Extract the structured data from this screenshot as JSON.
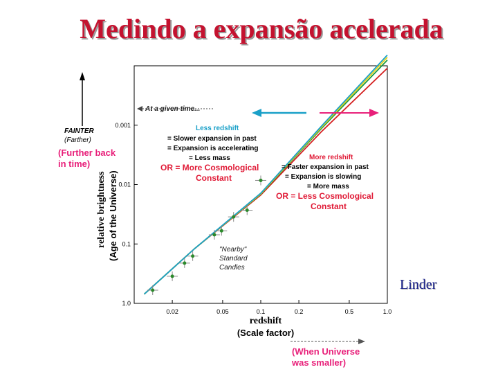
{
  "slide": {
    "title": "Medindo a expansão acelerada",
    "credit": "Linder"
  },
  "colors": {
    "title": "#c4122f",
    "credit": "#18208a",
    "cyan": "#1aa0c8",
    "pink": "#e8207a",
    "red": "#d41f1f",
    "green": "#1f9a3e",
    "yellow": "#e8d21a",
    "annotation_cyan": "#1aa0c8",
    "annotation_red": "#e01a36",
    "annotation_pink": "#e8207a",
    "data_green": "#2b8a2b"
  },
  "icons": {
    "arrow_up": "arrow-up-icon",
    "arrow_left": "arrow-left-icon",
    "arrow_right": "arrow-right-icon"
  },
  "chart_data": {
    "type": "line",
    "x_scale": "log",
    "y_scale": "log",
    "x_tick_labels": [
      "0.02",
      "0.05",
      "0.1",
      "0.2",
      "0.5",
      "1.0"
    ],
    "x_ticks": [
      0.02,
      0.05,
      0.1,
      0.2,
      0.5,
      1.0
    ],
    "y_tick_labels": [
      "0.001",
      "0.01",
      "0.1",
      "1.0"
    ],
    "y_ticks": [
      0.001,
      0.01,
      0.1,
      1.0
    ],
    "xlim": [
      0.01,
      1.0
    ],
    "ylim": [
      0.0001,
      1.0
    ],
    "xlabel_main": "redshift",
    "xlabel_sub": "(Scale factor)",
    "xlabel_note": "(When Universe was smaller)",
    "ylabel_main": "relative brightness",
    "ylabel_sub": "(Age of the Universe)",
    "left_annotation": {
      "faint_label": "FAINTER",
      "farther_label": "(Farther)",
      "further_back": "(Further back",
      "in_time": "in time)"
    },
    "top_annotation": "At a given time...",
    "less_redshift": {
      "heading": "Less redshift",
      "lines": [
        "= Slower expansion in past",
        "= Expansion is accelerating",
        "= Less mass"
      ],
      "cosmo": [
        "OR = More Cosmological",
        "Constant"
      ]
    },
    "more_redshift": {
      "heading": "More redshift",
      "lines": [
        "= Faster expansion in past",
        "= Expansion is slowing",
        "= More mass"
      ],
      "cosmo": [
        "OR = Less Cosmological",
        "Constant"
      ]
    },
    "nearby_label": [
      "\"Nearby\"",
      "Standard",
      "Candles"
    ],
    "series": [
      {
        "name": "",
        "color_key": "red",
        "points": [
          [
            0.012,
            0.7
          ],
          [
            0.03,
            0.12
          ],
          [
            0.1,
            0.015
          ],
          [
            0.3,
            0.0013
          ],
          [
            1.0,
            0.00011
          ]
        ]
      },
      {
        "name": "",
        "color_key": "green",
        "points": [
          [
            0.012,
            0.7
          ],
          [
            0.03,
            0.12
          ],
          [
            0.1,
            0.0145
          ],
          [
            0.3,
            0.00115
          ],
          [
            1.0,
            8e-05
          ]
        ]
      },
      {
        "name": "",
        "color_key": "yellow",
        "points": [
          [
            0.012,
            0.7
          ],
          [
            0.03,
            0.12
          ],
          [
            0.1,
            0.0143
          ],
          [
            0.3,
            0.0011
          ],
          [
            1.0,
            7.2e-05
          ]
        ]
      },
      {
        "name": "",
        "color_key": "cyan",
        "points": [
          [
            0.012,
            0.7
          ],
          [
            0.03,
            0.12
          ],
          [
            0.1,
            0.014
          ],
          [
            0.3,
            0.00105
          ],
          [
            1.0,
            6.6e-05
          ]
        ]
      }
    ],
    "data_points": [
      {
        "x": 0.014,
        "y": 0.6
      },
      {
        "x": 0.02,
        "y": 0.35
      },
      {
        "x": 0.025,
        "y": 0.21
      },
      {
        "x": 0.029,
        "y": 0.16
      },
      {
        "x": 0.043,
        "y": 0.07
      },
      {
        "x": 0.049,
        "y": 0.06
      },
      {
        "x": 0.061,
        "y": 0.035
      },
      {
        "x": 0.078,
        "y": 0.027
      },
      {
        "x": 0.1,
        "y": 0.0085
      }
    ]
  }
}
